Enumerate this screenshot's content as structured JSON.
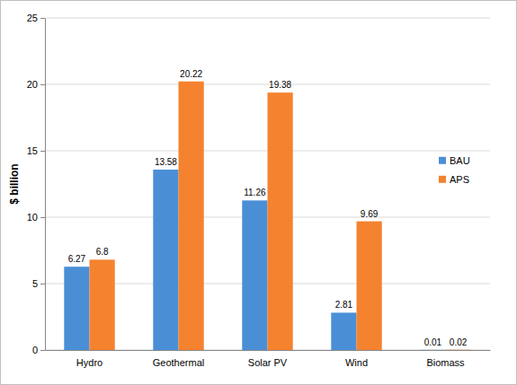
{
  "chart_data": {
    "type": "bar",
    "y_label": "$ billion",
    "categories": [
      "Hydro",
      "Geothermal",
      "Solar PV",
      "Wind",
      "Biomass"
    ],
    "series": [
      {
        "name": "BAU",
        "color": "#4a8fd6",
        "values": [
          6.27,
          13.58,
          11.26,
          2.81,
          0.01
        ]
      },
      {
        "name": "APS",
        "color": "#f5822f",
        "values": [
          6.8,
          20.22,
          19.38,
          9.69,
          0.02
        ]
      }
    ],
    "ylim": [
      0,
      25
    ],
    "yticks": [
      0,
      5,
      10,
      15,
      20,
      25
    ],
    "grid": true,
    "legend": "right",
    "data_labels": true
  }
}
